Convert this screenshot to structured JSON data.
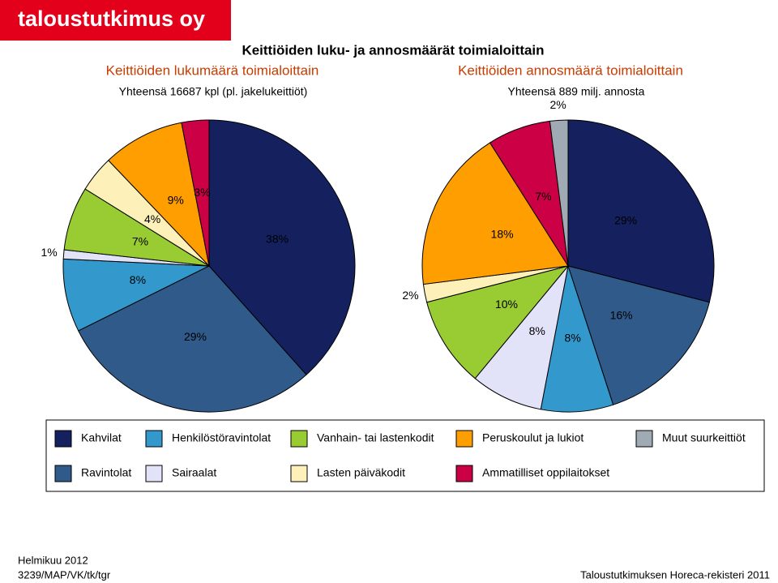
{
  "header": {
    "logo": "taloustutkimus oy",
    "title": "Keittiöiden luku- ja annosmäärät toimialoittain"
  },
  "chart_data": [
    {
      "type": "pie",
      "title": "Keittiöiden lukumäärä toimialoittain",
      "subtitle": "Yhteensä 16687 kpl (pl. jakelukeittiöt)",
      "categories": [
        "Kahvilat",
        "Ravintolat",
        "Henkilöstöravintolat",
        "Sairaalat",
        "Vanhain- tai lastenkodit",
        "Lasten päiväkodit",
        "Peruskoulut ja lukiot",
        "Ammatilliset oppilaitokset",
        "Muut suurkeittiöt"
      ],
      "colors": [
        "#15205e",
        "#2f5a8a",
        "#3399cc",
        "#e2e2f8",
        "#99cc33",
        "#fdf0b8",
        "#ff9e00",
        "#cc0044",
        "#a0aab4"
      ],
      "values": [
        38,
        29,
        8,
        1,
        7,
        4,
        9,
        3,
        null
      ],
      "value_labels": [
        "38%",
        "29%",
        "8%",
        "1%",
        "7%",
        "4%",
        "9%",
        "3%",
        null
      ]
    },
    {
      "type": "pie",
      "title": "Keittiöiden annosmäärä toimialoittain",
      "subtitle": "Yhteensä 889 milj. annosta",
      "categories": [
        "Kahvilat",
        "Ravintolat",
        "Henkilöstöravintolat",
        "Sairaalat",
        "Vanhain- tai lastenkodit",
        "Lasten päiväkodit",
        "Peruskoulut ja lukiot",
        "Ammatilliset oppilaitokset",
        "Muut suurkeittiöt"
      ],
      "colors": [
        "#15205e",
        "#2f5a8a",
        "#3399cc",
        "#e2e2f8",
        "#99cc33",
        "#fdf0b8",
        "#ff9e00",
        "#cc0044",
        "#a0aab4"
      ],
      "values": [
        29,
        16,
        8,
        8,
        10,
        2,
        18,
        7,
        2
      ],
      "value_labels": [
        "29%",
        "16%",
        "8%",
        "8%",
        "10%",
        "2%",
        "18%",
        "7%",
        "2%"
      ]
    }
  ],
  "footer": {
    "date": "Helmikuu 2012",
    "code": "3239/MAP/VK/tk/tgr",
    "source": "Taloustutkimuksen Horeca-rekisteri 2011"
  }
}
